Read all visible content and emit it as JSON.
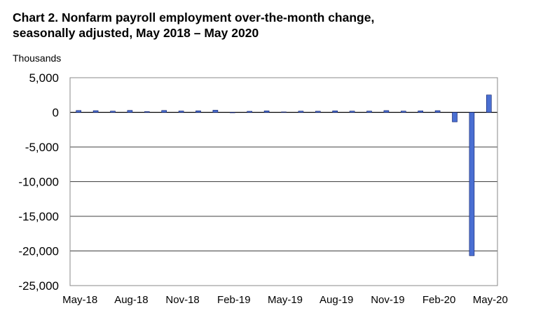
{
  "chart_data": {
    "type": "bar",
    "title_line1": "Chart 2. Nonfarm payroll employment over-the-month change,",
    "title_line2": "seasonally adjusted, May 2018 – May 2020",
    "ylabel": "Thousands",
    "ylim": [
      -25000,
      5000
    ],
    "y_ticks": [
      5000,
      0,
      -5000,
      -10000,
      -15000,
      -20000,
      -25000
    ],
    "y_tick_labels": [
      "5,000",
      "0",
      "-5,000",
      "-10,000",
      "-15,000",
      "-20,000",
      "-25,000"
    ],
    "x_tick_labels": [
      "May-18",
      "Aug-18",
      "Nov-18",
      "Feb-19",
      "May-19",
      "Aug-19",
      "Nov-19",
      "Feb-20",
      "May-20"
    ],
    "categories": [
      "May-18",
      "Jun-18",
      "Jul-18",
      "Aug-18",
      "Sep-18",
      "Oct-18",
      "Nov-18",
      "Dec-18",
      "Jan-19",
      "Feb-19",
      "Mar-19",
      "Apr-19",
      "May-19",
      "Jun-19",
      "Jul-19",
      "Aug-19",
      "Sep-19",
      "Oct-19",
      "Nov-19",
      "Dec-19",
      "Jan-20",
      "Feb-20",
      "Mar-20",
      "Apr-20",
      "May-20"
    ],
    "values": [
      270,
      248,
      178,
      282,
      108,
      277,
      196,
      227,
      312,
      1,
      153,
      216,
      62,
      178,
      166,
      219,
      180,
      185,
      261,
      184,
      214,
      251,
      -1373,
      -20687,
      2509
    ],
    "grid": true,
    "legend": "none",
    "bar_color": "#4a6fd2",
    "bar_edge_color": "#0a1a66"
  }
}
